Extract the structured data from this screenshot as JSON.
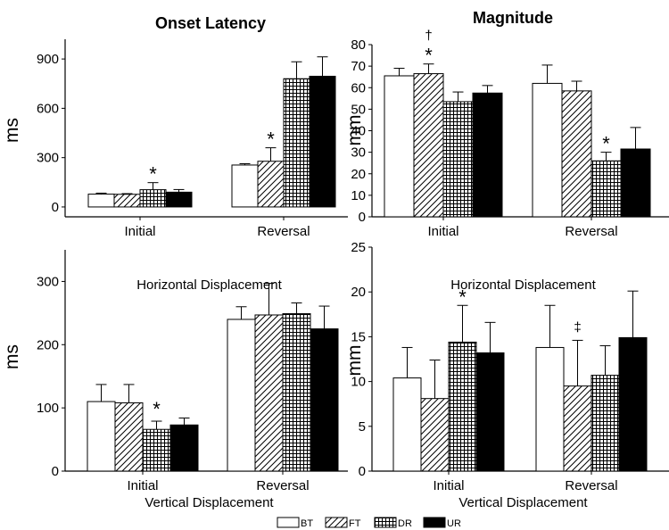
{
  "column_titles": [
    "Onset Latency",
    "Magnitude"
  ],
  "legend": [
    {
      "label": "BT",
      "pattern": "white"
    },
    {
      "label": "FT",
      "pattern": "hatch"
    },
    {
      "label": "DR",
      "pattern": "grid"
    },
    {
      "label": "UR",
      "pattern": "black"
    }
  ],
  "chart_data": [
    {
      "type": "bar",
      "panel": "top-left",
      "categories": [
        "Initial",
        "Reversal"
      ],
      "xlabel": "",
      "ylabel": "ms",
      "ylim": [
        -60,
        1020
      ],
      "yticks": [
        0,
        300,
        600,
        900
      ],
      "series": [
        {
          "name": "BT",
          "values": [
            78,
            255
          ],
          "errors": [
            6,
            8
          ]
        },
        {
          "name": "FT",
          "values": [
            77,
            278
          ],
          "errors": [
            4,
            82
          ]
        },
        {
          "name": "DR",
          "values": [
            105,
            780
          ],
          "errors": [
            43,
            103
          ]
        },
        {
          "name": "UR",
          "values": [
            90,
            795
          ],
          "errors": [
            16,
            118
          ]
        }
      ],
      "annotations": [
        {
          "text": "*",
          "category": "Initial",
          "series": "DR"
        },
        {
          "text": "*",
          "category": "Reversal",
          "series": "FT"
        }
      ]
    },
    {
      "type": "bar",
      "panel": "top-right",
      "categories": [
        "Initial",
        "Reversal"
      ],
      "xlabel": "",
      "ylabel": "mm",
      "ylim": [
        0,
        80
      ],
      "yticks": [
        0,
        10,
        20,
        30,
        40,
        50,
        60,
        70,
        80
      ],
      "series": [
        {
          "name": "BT",
          "values": [
            65.5,
            62
          ],
          "errors": [
            3.5,
            8.5
          ]
        },
        {
          "name": "FT",
          "values": [
            66.5,
            58.5
          ],
          "errors": [
            4.5,
            4.5
          ]
        },
        {
          "name": "DR",
          "values": [
            53.5,
            26
          ],
          "errors": [
            4.5,
            4
          ]
        },
        {
          "name": "UR",
          "values": [
            57.5,
            31.5
          ],
          "errors": [
            3.5,
            10
          ]
        }
      ],
      "annotations": [
        {
          "text": "*",
          "category": "Initial",
          "series": "FT"
        },
        {
          "text": "†",
          "category": "Initial",
          "series": "FT"
        },
        {
          "text": "*",
          "category": "Reversal",
          "series": "DR"
        }
      ]
    },
    {
      "type": "bar",
      "panel": "bottom-left",
      "title": "Horizontal Displacement",
      "categories": [
        "Initial",
        "Reversal"
      ],
      "xlabel": "Vertical Displacement",
      "ylabel": "ms",
      "ylim": [
        0,
        350
      ],
      "yticks": [
        0,
        100,
        200,
        300
      ],
      "series": [
        {
          "name": "BT",
          "values": [
            110,
            240
          ],
          "errors": [
            27,
            20
          ]
        },
        {
          "name": "FT",
          "values": [
            108,
            247
          ],
          "errors": [
            29,
            50
          ]
        },
        {
          "name": "DR",
          "values": [
            66,
            249
          ],
          "errors": [
            13,
            17
          ]
        },
        {
          "name": "UR",
          "values": [
            73,
            225
          ],
          "errors": [
            11,
            36
          ]
        }
      ],
      "annotations": [
        {
          "text": "*",
          "category": "Initial",
          "series": "DR"
        }
      ]
    },
    {
      "type": "bar",
      "panel": "bottom-right",
      "title": "Horizontal Displacement",
      "categories": [
        "Initial",
        "Reversal"
      ],
      "xlabel": "Vertical Displacement",
      "ylabel": "mm",
      "ylim": [
        0,
        25
      ],
      "yticks": [
        0,
        5,
        10,
        15,
        20,
        25
      ],
      "series": [
        {
          "name": "BT",
          "values": [
            10.4,
            13.8
          ],
          "errors": [
            3.4,
            4.7
          ]
        },
        {
          "name": "FT",
          "values": [
            8.1,
            9.5
          ],
          "errors": [
            4.3,
            5.1
          ]
        },
        {
          "name": "DR",
          "values": [
            14.4,
            10.7
          ],
          "errors": [
            4.1,
            3.3
          ]
        },
        {
          "name": "UR",
          "values": [
            13.2,
            14.9
          ],
          "errors": [
            3.4,
            5.2
          ]
        }
      ],
      "annotations": [
        {
          "text": "*",
          "category": "Initial",
          "series": "DR"
        },
        {
          "text": "‡",
          "category": "Reversal",
          "series": "FT"
        }
      ]
    }
  ]
}
